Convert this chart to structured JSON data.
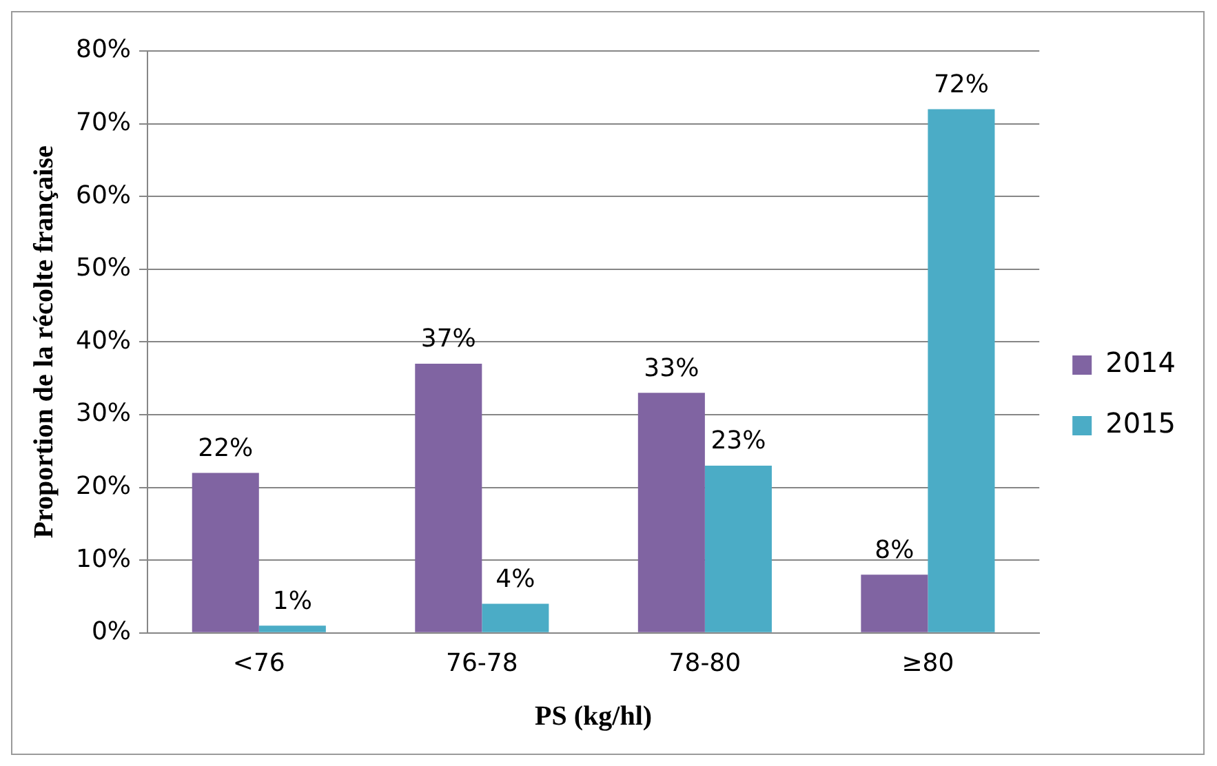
{
  "chart_data": {
    "type": "bar",
    "xlabel": "PS (kg/hl)",
    "ylabel": "Proportion de la récolte française",
    "categories": [
      "<76",
      "76-78",
      "78-80",
      "≥80"
    ],
    "series": [
      {
        "name": "2014",
        "color": "#8064a2",
        "values": [
          22,
          37,
          33,
          8
        ],
        "value_labels": [
          "22%",
          "37%",
          "33%",
          "8%"
        ]
      },
      {
        "name": "2015",
        "color": "#4bacc6",
        "values": [
          1,
          4,
          23,
          72
        ],
        "value_labels": [
          "1%",
          "4%",
          "23%",
          "72%"
        ]
      }
    ],
    "ylim": [
      0,
      80
    ],
    "yticks": [
      {
        "value": 0,
        "label": "0%"
      },
      {
        "value": 10,
        "label": "10%"
      },
      {
        "value": 20,
        "label": "20%"
      },
      {
        "value": 30,
        "label": "30%"
      },
      {
        "value": 40,
        "label": "40%"
      },
      {
        "value": 50,
        "label": "50%"
      },
      {
        "value": 60,
        "label": "60%"
      },
      {
        "value": 70,
        "label": "70%"
      },
      {
        "value": 80,
        "label": "80%"
      }
    ],
    "grid": "y",
    "legend": "right"
  }
}
